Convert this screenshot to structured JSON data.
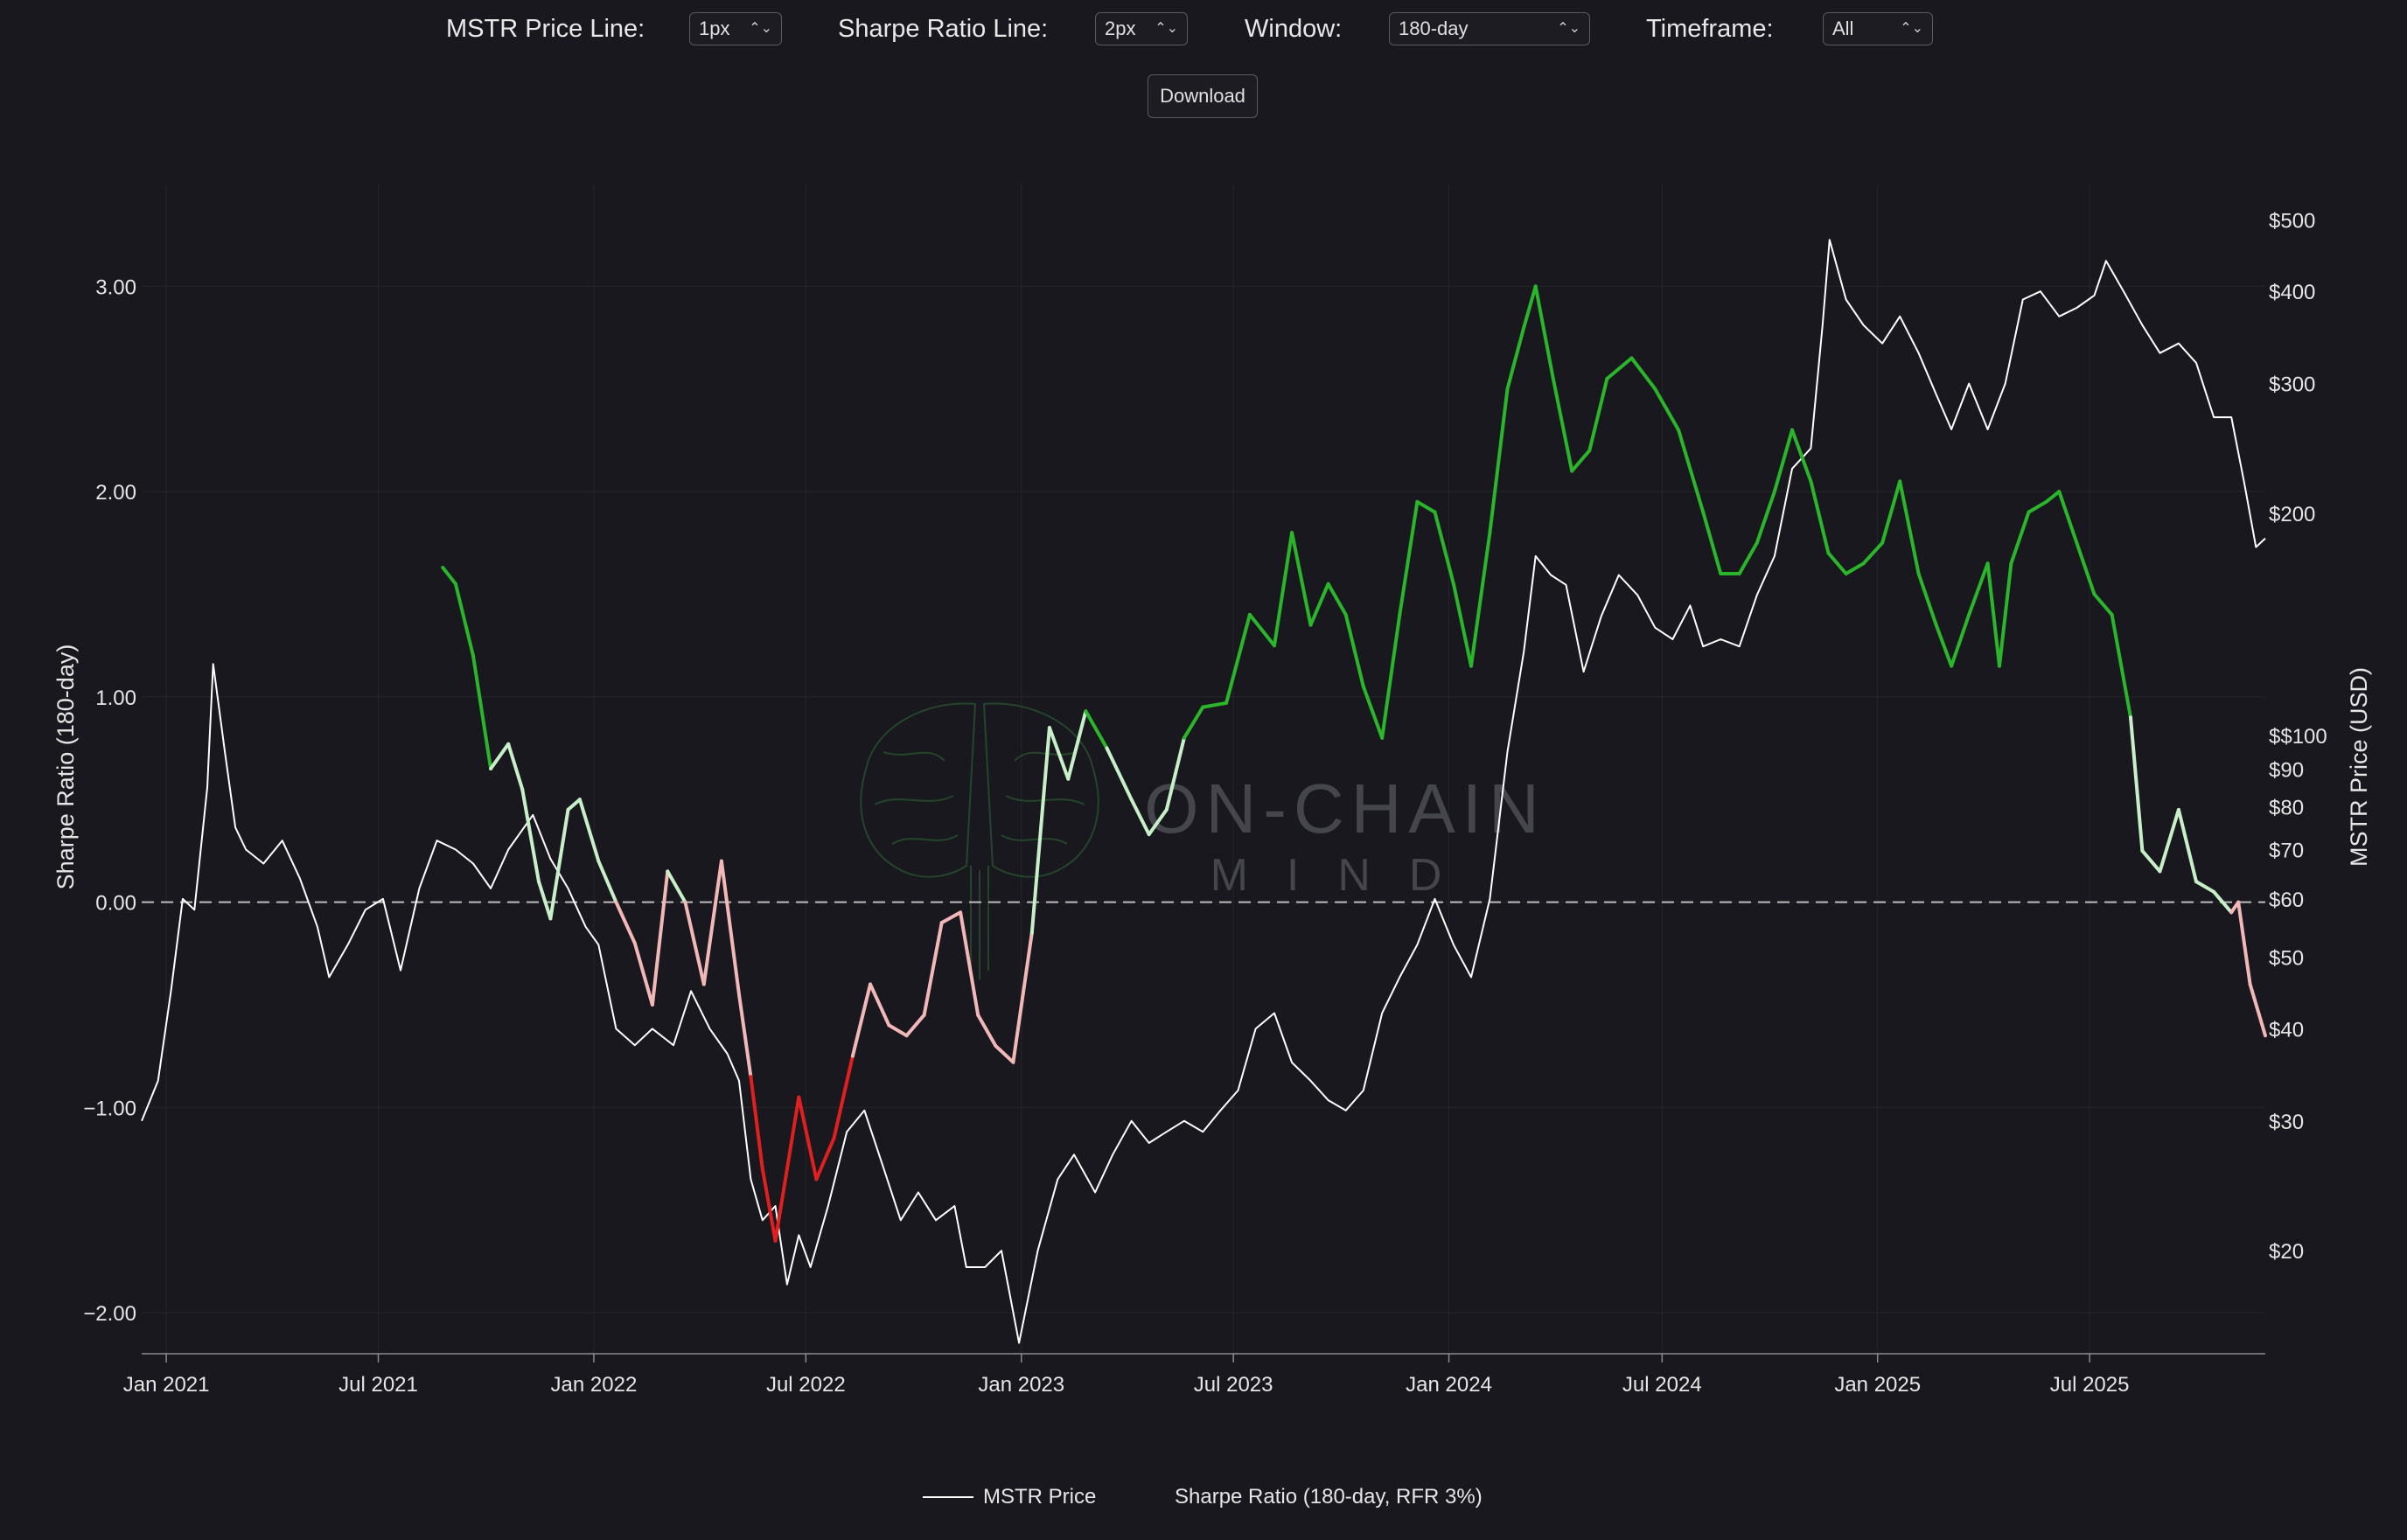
{
  "controls": {
    "price_line_label": "MSTR Price Line:",
    "price_line_value": "1px",
    "sharpe_line_label": "Sharpe Ratio Line:",
    "sharpe_line_value": "2px",
    "window_label": "Window:",
    "window_value": "180-day",
    "timeframe_label": "Timeframe:",
    "timeframe_value": "All",
    "download_label": "Download",
    "chevron_icon": "up-down-chevron-icon"
  },
  "watermark": {
    "line1": "ON-CHAIN",
    "line2": "MIND",
    "icon": "brain-icon"
  },
  "legend": {
    "price": "MSTR Price",
    "sharpe": "Sharpe Ratio (180-day, RFR 3%)"
  },
  "colors": {
    "background": "#18181e",
    "price": "#ffffff",
    "sharpe_positive_strong": "#2bb52b",
    "sharpe_positive_weak": "#c8f0c8",
    "sharpe_negative_weak": "#f2b8b8",
    "sharpe_negative_strong": "#e02020",
    "zero_line": "#bdbdbd"
  },
  "chart_data": {
    "type": "line",
    "xlabel": "",
    "ylabel": "Sharpe Ratio (180-day)",
    "y2label": "MSTR Price (USD)",
    "x_ticks": [
      "Jan 2021",
      "Jul 2021",
      "Jan 2022",
      "Jul 2022",
      "Jan 2023",
      "Jul 2023",
      "Jan 2024",
      "Jul 2024",
      "Jan 2025",
      "Jul 2025"
    ],
    "x_tick_dates": [
      "2021-01-01",
      "2021-07-01",
      "2022-01-01",
      "2022-07-01",
      "2023-01-01",
      "2023-07-01",
      "2024-01-01",
      "2024-07-01",
      "2025-01-01",
      "2025-07-01"
    ],
    "xlim": [
      "2020-12-11",
      "2025-11-28"
    ],
    "ylim": [
      -2.2,
      3.5
    ],
    "y_ticks": [
      {
        "value": 3,
        "label": "3.00"
      },
      {
        "value": 2,
        "label": "2.00"
      },
      {
        "value": 1,
        "label": "1.00"
      },
      {
        "value": 0,
        "label": "0.00"
      },
      {
        "value": -1,
        "label": "−1.00"
      },
      {
        "value": -2,
        "label": "−2.00"
      }
    ],
    "y2_scale": "log",
    "y2lim": [
      14.5,
      560
    ],
    "y2_ticks": [
      {
        "value": 500,
        "label": "$500"
      },
      {
        "value": 400,
        "label": "$400"
      },
      {
        "value": 300,
        "label": "$300"
      },
      {
        "value": 200,
        "label": "$200"
      },
      {
        "value": 100,
        "label": "$$100"
      },
      {
        "value": 90,
        "label": "$90"
      },
      {
        "value": 80,
        "label": "$80"
      },
      {
        "value": 70,
        "label": "$70"
      },
      {
        "value": 60,
        "label": "$60"
      },
      {
        "value": 50,
        "label": "$50"
      },
      {
        "value": 40,
        "label": "$40"
      },
      {
        "value": 30,
        "label": "$30"
      },
      {
        "value": 20,
        "label": "$20"
      }
    ],
    "grid": true,
    "legend_position": "bottom-center",
    "series": [
      {
        "name": "MSTR Price",
        "axis": "right",
        "points": [
          [
            "2020-12-11",
            30
          ],
          [
            "2020-12-25",
            34
          ],
          [
            "2021-01-05",
            45
          ],
          [
            "2021-01-15",
            60
          ],
          [
            "2021-01-25",
            58
          ],
          [
            "2021-02-05",
            85
          ],
          [
            "2021-02-10",
            125
          ],
          [
            "2021-02-20",
            95
          ],
          [
            "2021-03-01",
            75
          ],
          [
            "2021-03-10",
            70
          ],
          [
            "2021-03-25",
            67
          ],
          [
            "2021-04-10",
            72
          ],
          [
            "2021-04-25",
            64
          ],
          [
            "2021-05-10",
            55
          ],
          [
            "2021-05-20",
            47
          ],
          [
            "2021-06-05",
            52
          ],
          [
            "2021-06-20",
            58
          ],
          [
            "2021-07-05",
            60
          ],
          [
            "2021-07-20",
            48
          ],
          [
            "2021-08-05",
            62
          ],
          [
            "2021-08-20",
            72
          ],
          [
            "2021-09-05",
            70
          ],
          [
            "2021-09-20",
            67
          ],
          [
            "2021-10-05",
            62
          ],
          [
            "2021-10-20",
            70
          ],
          [
            "2021-11-10",
            78
          ],
          [
            "2021-11-25",
            68
          ],
          [
            "2021-12-10",
            62
          ],
          [
            "2021-12-25",
            55
          ],
          [
            "2022-01-05",
            52
          ],
          [
            "2022-01-20",
            40
          ],
          [
            "2022-02-05",
            38
          ],
          [
            "2022-02-20",
            40
          ],
          [
            "2022-03-10",
            38
          ],
          [
            "2022-03-25",
            45
          ],
          [
            "2022-04-10",
            40
          ],
          [
            "2022-04-25",
            37
          ],
          [
            "2022-05-05",
            34
          ],
          [
            "2022-05-15",
            25
          ],
          [
            "2022-05-25",
            22
          ],
          [
            "2022-06-05",
            23
          ],
          [
            "2022-06-15",
            18
          ],
          [
            "2022-06-25",
            21
          ],
          [
            "2022-07-05",
            19
          ],
          [
            "2022-07-20",
            23
          ],
          [
            "2022-08-05",
            29
          ],
          [
            "2022-08-20",
            31
          ],
          [
            "2022-09-05",
            26
          ],
          [
            "2022-09-20",
            22
          ],
          [
            "2022-10-05",
            24
          ],
          [
            "2022-10-20",
            22
          ],
          [
            "2022-11-05",
            23
          ],
          [
            "2022-11-15",
            19
          ],
          [
            "2022-12-01",
            19
          ],
          [
            "2022-12-15",
            20
          ],
          [
            "2022-12-30",
            15
          ],
          [
            "2023-01-15",
            20
          ],
          [
            "2023-02-01",
            25
          ],
          [
            "2023-02-15",
            27
          ],
          [
            "2023-03-05",
            24
          ],
          [
            "2023-03-20",
            27
          ],
          [
            "2023-04-05",
            30
          ],
          [
            "2023-04-20",
            28
          ],
          [
            "2023-05-05",
            29
          ],
          [
            "2023-05-20",
            30
          ],
          [
            "2023-06-05",
            29
          ],
          [
            "2023-06-20",
            31
          ],
          [
            "2023-07-05",
            33
          ],
          [
            "2023-07-20",
            40
          ],
          [
            "2023-08-05",
            42
          ],
          [
            "2023-08-20",
            36
          ],
          [
            "2023-09-05",
            34
          ],
          [
            "2023-09-20",
            32
          ],
          [
            "2023-10-05",
            31
          ],
          [
            "2023-10-20",
            33
          ],
          [
            "2023-11-05",
            42
          ],
          [
            "2023-11-20",
            47
          ],
          [
            "2023-12-05",
            52
          ],
          [
            "2023-12-20",
            60
          ],
          [
            "2024-01-05",
            52
          ],
          [
            "2024-01-20",
            47
          ],
          [
            "2024-02-05",
            60
          ],
          [
            "2024-02-20",
            95
          ],
          [
            "2024-03-05",
            130
          ],
          [
            "2024-03-15",
            175
          ],
          [
            "2024-03-28",
            165
          ],
          [
            "2024-04-10",
            160
          ],
          [
            "2024-04-25",
            122
          ],
          [
            "2024-05-10",
            145
          ],
          [
            "2024-05-25",
            165
          ],
          [
            "2024-06-10",
            155
          ],
          [
            "2024-06-25",
            140
          ],
          [
            "2024-07-10",
            135
          ],
          [
            "2024-07-25",
            150
          ],
          [
            "2024-08-05",
            132
          ],
          [
            "2024-08-20",
            135
          ],
          [
            "2024-09-05",
            132
          ],
          [
            "2024-09-20",
            155
          ],
          [
            "2024-10-05",
            175
          ],
          [
            "2024-10-20",
            230
          ],
          [
            "2024-11-05",
            245
          ],
          [
            "2024-11-15",
            360
          ],
          [
            "2024-11-21",
            470
          ],
          [
            "2024-12-05",
            390
          ],
          [
            "2024-12-20",
            360
          ],
          [
            "2025-01-05",
            340
          ],
          [
            "2025-01-20",
            370
          ],
          [
            "2025-02-05",
            330
          ],
          [
            "2025-02-20",
            290
          ],
          [
            "2025-03-05",
            260
          ],
          [
            "2025-03-20",
            300
          ],
          [
            "2025-04-05",
            260
          ],
          [
            "2025-04-20",
            300
          ],
          [
            "2025-05-05",
            390
          ],
          [
            "2025-05-20",
            400
          ],
          [
            "2025-06-05",
            370
          ],
          [
            "2025-06-20",
            380
          ],
          [
            "2025-07-05",
            395
          ],
          [
            "2025-07-15",
            440
          ],
          [
            "2025-07-30",
            400
          ],
          [
            "2025-08-15",
            360
          ],
          [
            "2025-08-30",
            330
          ],
          [
            "2025-09-15",
            340
          ],
          [
            "2025-09-30",
            320
          ],
          [
            "2025-10-15",
            270
          ],
          [
            "2025-10-30",
            270
          ],
          [
            "2025-11-10",
            220
          ],
          [
            "2025-11-20",
            180
          ],
          [
            "2025-11-28",
            185
          ]
        ]
      },
      {
        "name": "Sharpe Ratio (180-day, RFR 3%)",
        "axis": "left",
        "points": [
          [
            "2021-08-25",
            1.63
          ],
          [
            "2021-09-05",
            1.55
          ],
          [
            "2021-09-20",
            1.2
          ],
          [
            "2021-10-05",
            0.65
          ],
          [
            "2021-10-20",
            0.77
          ],
          [
            "2021-11-01",
            0.55
          ],
          [
            "2021-11-15",
            0.1
          ],
          [
            "2021-11-25",
            -0.08
          ],
          [
            "2021-12-10",
            0.45
          ],
          [
            "2021-12-20",
            0.5
          ],
          [
            "2022-01-05",
            0.2
          ],
          [
            "2022-01-20",
            0.0
          ],
          [
            "2022-02-05",
            -0.2
          ],
          [
            "2022-02-20",
            -0.5
          ],
          [
            "2022-03-05",
            0.15
          ],
          [
            "2022-03-20",
            0.0
          ],
          [
            "2022-04-05",
            -0.4
          ],
          [
            "2022-04-20",
            0.2
          ],
          [
            "2022-05-05",
            -0.45
          ],
          [
            "2022-05-15",
            -0.85
          ],
          [
            "2022-05-25",
            -1.3
          ],
          [
            "2022-06-05",
            -1.65
          ],
          [
            "2022-06-15",
            -1.3
          ],
          [
            "2022-06-25",
            -0.95
          ],
          [
            "2022-07-10",
            -1.35
          ],
          [
            "2022-07-25",
            -1.15
          ],
          [
            "2022-08-10",
            -0.75
          ],
          [
            "2022-08-25",
            -0.4
          ],
          [
            "2022-09-10",
            -0.6
          ],
          [
            "2022-09-25",
            -0.65
          ],
          [
            "2022-10-10",
            -0.55
          ],
          [
            "2022-10-25",
            -0.1
          ],
          [
            "2022-11-10",
            -0.05
          ],
          [
            "2022-11-25",
            -0.55
          ],
          [
            "2022-12-10",
            -0.7
          ],
          [
            "2022-12-25",
            -0.78
          ],
          [
            "2023-01-10",
            -0.15
          ],
          [
            "2023-01-25",
            0.85
          ],
          [
            "2023-02-10",
            0.6
          ],
          [
            "2023-02-25",
            0.93
          ],
          [
            "2023-03-15",
            0.75
          ],
          [
            "2023-04-05",
            0.5
          ],
          [
            "2023-04-20",
            0.33
          ],
          [
            "2023-05-05",
            0.45
          ],
          [
            "2023-05-20",
            0.8
          ],
          [
            "2023-06-05",
            0.95
          ],
          [
            "2023-06-25",
            0.97
          ],
          [
            "2023-07-15",
            1.4
          ],
          [
            "2023-08-05",
            1.25
          ],
          [
            "2023-08-20",
            1.8
          ],
          [
            "2023-09-05",
            1.35
          ],
          [
            "2023-09-20",
            1.55
          ],
          [
            "2023-10-05",
            1.4
          ],
          [
            "2023-10-20",
            1.05
          ],
          [
            "2023-11-05",
            0.8
          ],
          [
            "2023-11-20",
            1.4
          ],
          [
            "2023-12-05",
            1.95
          ],
          [
            "2023-12-20",
            1.9
          ],
          [
            "2024-01-05",
            1.55
          ],
          [
            "2024-01-20",
            1.15
          ],
          [
            "2024-02-05",
            1.8
          ],
          [
            "2024-02-20",
            2.5
          ],
          [
            "2024-03-05",
            2.8
          ],
          [
            "2024-03-15",
            3.0
          ],
          [
            "2024-03-30",
            2.55
          ],
          [
            "2024-04-15",
            2.1
          ],
          [
            "2024-04-30",
            2.2
          ],
          [
            "2024-05-15",
            2.55
          ],
          [
            "2024-06-05",
            2.65
          ],
          [
            "2024-06-25",
            2.5
          ],
          [
            "2024-07-15",
            2.3
          ],
          [
            "2024-08-05",
            1.9
          ],
          [
            "2024-08-20",
            1.6
          ],
          [
            "2024-09-05",
            1.6
          ],
          [
            "2024-09-20",
            1.75
          ],
          [
            "2024-10-05",
            2.0
          ],
          [
            "2024-10-20",
            2.3
          ],
          [
            "2024-11-05",
            2.05
          ],
          [
            "2024-11-20",
            1.7
          ],
          [
            "2024-12-05",
            1.6
          ],
          [
            "2024-12-20",
            1.65
          ],
          [
            "2025-01-05",
            1.75
          ],
          [
            "2025-01-20",
            2.05
          ],
          [
            "2025-02-05",
            1.6
          ],
          [
            "2025-02-20",
            1.35
          ],
          [
            "2025-03-05",
            1.15
          ],
          [
            "2025-03-20",
            1.4
          ],
          [
            "2025-04-05",
            1.65
          ],
          [
            "2025-04-15",
            1.15
          ],
          [
            "2025-04-25",
            1.65
          ],
          [
            "2025-05-10",
            1.9
          ],
          [
            "2025-05-25",
            1.95
          ],
          [
            "2025-06-05",
            2.0
          ],
          [
            "2025-06-20",
            1.75
          ],
          [
            "2025-07-05",
            1.5
          ],
          [
            "2025-07-20",
            1.4
          ],
          [
            "2025-08-05",
            0.9
          ],
          [
            "2025-08-15",
            0.25
          ],
          [
            "2025-08-30",
            0.15
          ],
          [
            "2025-09-15",
            0.45
          ],
          [
            "2025-09-30",
            0.1
          ],
          [
            "2025-10-15",
            0.05
          ],
          [
            "2025-10-30",
            -0.05
          ],
          [
            "2025-11-05",
            0.0
          ],
          [
            "2025-11-15",
            -0.4
          ],
          [
            "2025-11-28",
            -0.65
          ]
        ]
      }
    ]
  }
}
